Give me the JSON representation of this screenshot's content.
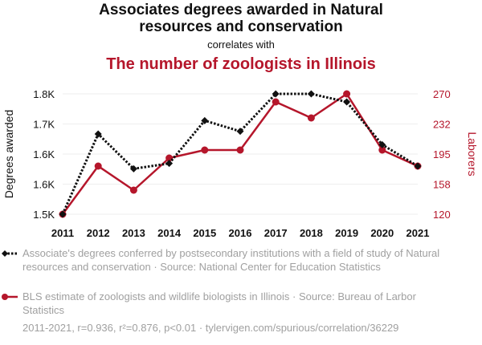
{
  "header": {
    "title_line1": "Associates degrees awarded in Natural",
    "title_line2": "resources and conservation",
    "connector": "correlates with",
    "title_series2": "The number of zoologists in Illinois"
  },
  "colors": {
    "series1": "#111111",
    "series2": "#b5162b",
    "grid": "#eeeeee"
  },
  "chart_data": {
    "type": "line",
    "x": [
      "2011",
      "2012",
      "2013",
      "2014",
      "2015",
      "2016",
      "2017",
      "2018",
      "2019",
      "2020",
      "2021"
    ],
    "series": [
      {
        "name": "Associate's degrees conferred by postsecondary institutions with a field of study of Natural resources and conservation · Source: National Center for Education Statistics",
        "axis": "left",
        "style": "dotted",
        "marker": "diamond",
        "values": [
          1525,
          1675,
          1610,
          1620,
          1700,
          1680,
          1750,
          1750,
          1735,
          1655,
          1615
        ]
      },
      {
        "name": "BLS estimate of zoologists and wildlife biologists in Illinois · Source: Bureau of Larbor Statistics",
        "axis": "right",
        "style": "solid",
        "marker": "circle",
        "values": [
          120,
          180,
          150,
          190,
          200,
          200,
          260,
          240,
          270,
          200,
          180
        ]
      }
    ],
    "y_left": {
      "label": "Degrees awarded",
      "ticks": [
        "1.8K",
        "1.7K",
        "1.6K",
        "1.6K",
        "1.5K"
      ],
      "range": [
        1525,
        1750
      ]
    },
    "y_right": {
      "label": "Laborers",
      "ticks": [
        "270",
        "232",
        "195",
        "158",
        "120"
      ],
      "range": [
        120,
        270
      ]
    },
    "grid": true
  },
  "footer": "2011-2021, r=0.936, r²=0.876, p<0.01 · tylervigen.com/spurious/correlation/36229"
}
